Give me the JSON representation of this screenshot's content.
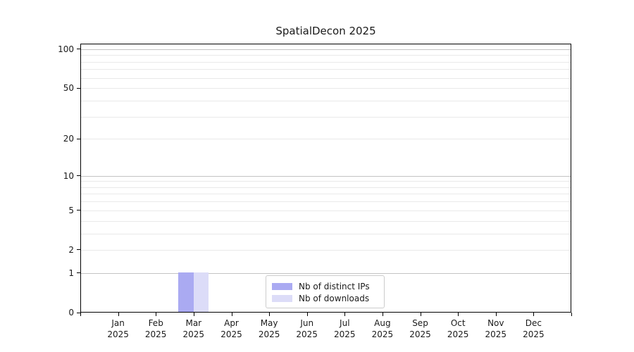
{
  "chart_data": {
    "type": "bar",
    "title": "SpatialDecon 2025",
    "categories": [
      "Jan 2025",
      "Feb 2025",
      "Mar 2025",
      "Apr 2025",
      "May 2025",
      "Jun 2025",
      "Jul 2025",
      "Aug 2025",
      "Sep 2025",
      "Oct 2025",
      "Nov 2025",
      "Dec 2025"
    ],
    "series": [
      {
        "name": "Nb of distinct IPs",
        "color": "#aaaaf2",
        "values": [
          0,
          0,
          1,
          0,
          0,
          0,
          0,
          0,
          0,
          0,
          0,
          0
        ]
      },
      {
        "name": "Nb of downloads",
        "color": "#dcdcf8",
        "values": [
          0,
          0,
          1,
          0,
          0,
          0,
          0,
          0,
          0,
          0,
          0,
          0
        ]
      }
    ],
    "xlabel": "",
    "ylabel": "",
    "y_scale": "log1p",
    "ylim": [
      0,
      110
    ],
    "y_ticks": [
      0,
      1,
      2,
      5,
      10,
      20,
      50,
      100
    ],
    "gridlines": {
      "major": [
        1,
        10,
        100
      ],
      "minor": [
        2,
        3,
        4,
        5,
        6,
        7,
        8,
        9,
        20,
        30,
        40,
        50,
        60,
        70,
        80,
        90
      ]
    },
    "grid": true,
    "legend_position": "bottom-center",
    "colors": {
      "grid_major": "#c3c3c3",
      "grid_minor": "#e9e9e9",
      "spine": "#000000",
      "text": "#1a1a1a",
      "background": "#ffffff"
    }
  }
}
